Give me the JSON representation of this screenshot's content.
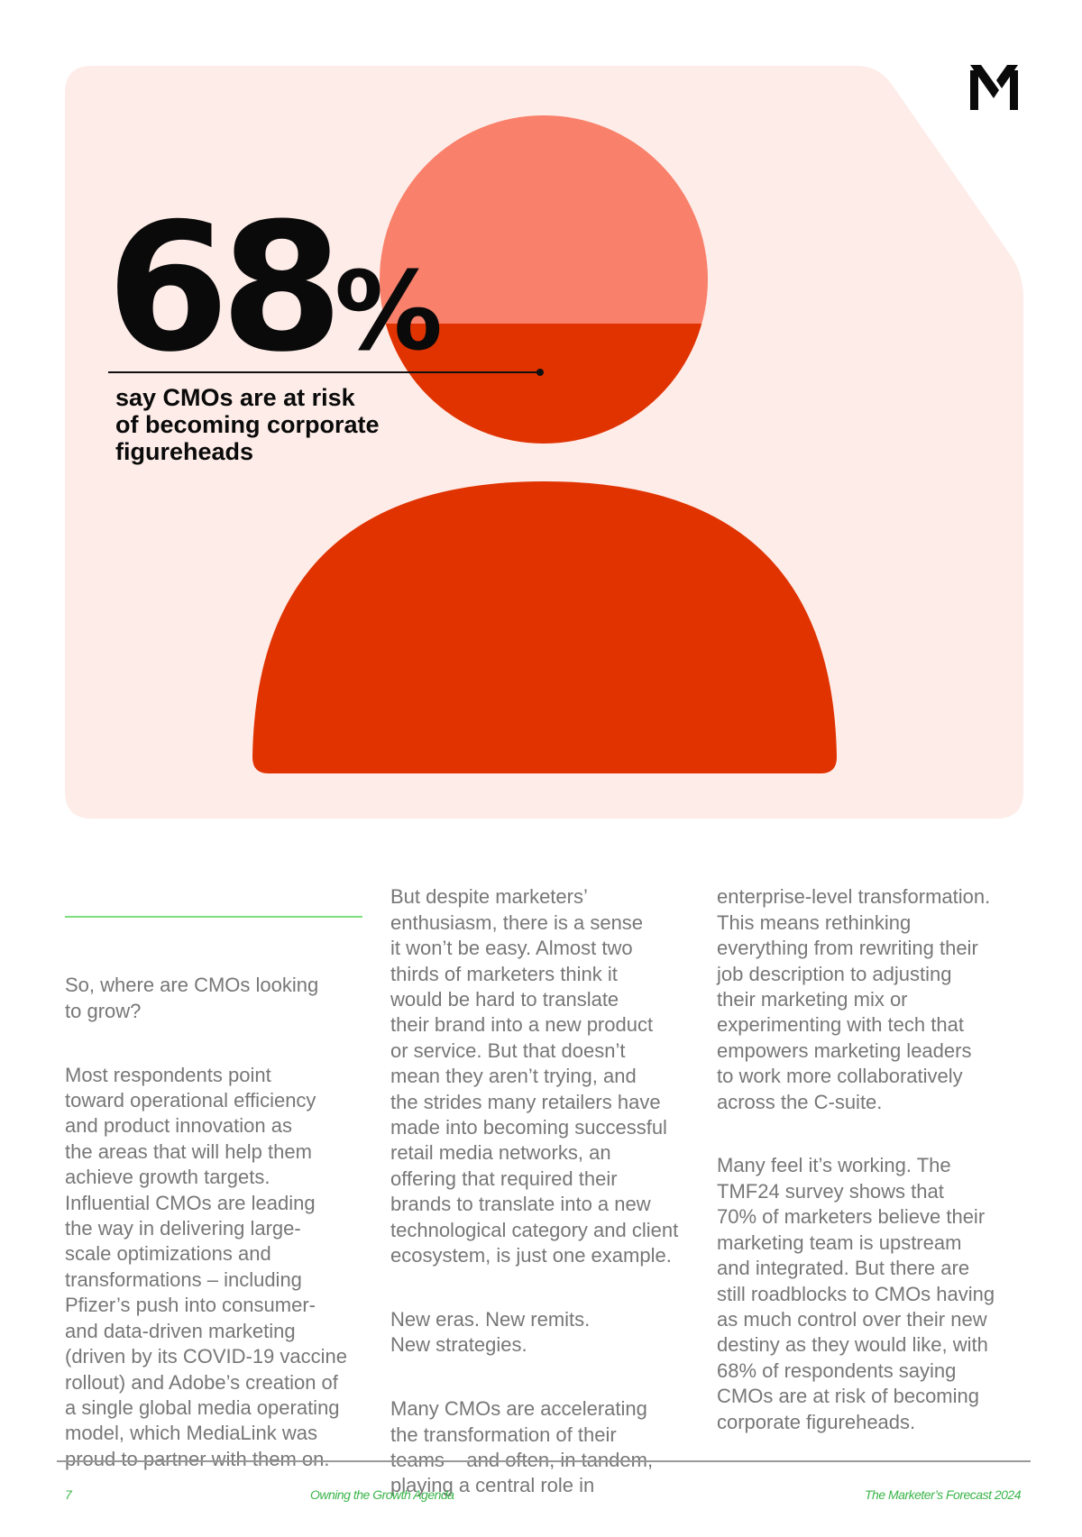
{
  "colors": {
    "panel": "#fdece8",
    "head_light": "#f9806a",
    "accent_red": "#e03300",
    "rule_green": "#7ee07a",
    "footer_green": "#3bb54a",
    "body_text": "#777777"
  },
  "logo": {
    "name": "medialink-m-logo",
    "letter": "M"
  },
  "stat": {
    "value": "68",
    "unit": "%",
    "caption": "say CMOs are at risk\nof becoming corporate\nfigureheads"
  },
  "columns": [
    {
      "paragraphs": [
        "So, where are CMOs looking\nto grow?",
        "Most respondents point\ntoward operational efficiency\nand product innovation as\nthe areas that will help them\nachieve growth targets.\nInfluential CMOs are leading\nthe way in delivering large-\nscale optimizations and\ntransformations – including\nPfizer’s push into consumer-\nand data-driven marketing\n(driven by its COVID-19 vaccine\nrollout) and Adobe’s creation of\na single global media operating\nmodel, which MediaLink was\nproud to partner with them on."
      ]
    },
    {
      "paragraphs": [
        "But despite marketers’\nenthusiasm, there is a sense\nit won’t be easy. Almost two\nthirds of marketers think it\nwould be hard to translate\ntheir brand into a new product\nor service. But that doesn’t\nmean they aren’t trying, and\nthe strides many retailers have\nmade into becoming successful\nretail media networks, an\noffering that required their\nbrands to translate into a new\ntechnological category and client\necosystem, is just one example.",
        "New eras. New remits.\nNew strategies.",
        "Many CMOs are accelerating\nthe transformation of their\nteams – and often, in tandem,\nplaying a central role in"
      ]
    },
    {
      "paragraphs": [
        "enterprise-level transformation.\nThis means rethinking\neverything from rewriting their\njob description to adjusting\ntheir marketing mix or\nexperimenting with tech that\nempowers marketing leaders\nto work more collaboratively\nacross the C-suite.",
        "Many feel it’s working. The\nTMF24 survey shows that\n70% of marketers believe their\nmarketing team is upstream\nand integrated. But there are\nstill roadblocks to CMOs having\nas much control over their new\ndestiny as they would like, with\n68% of respondents saying\nCMOs are at risk of becoming\ncorporate figureheads."
      ]
    }
  ],
  "footer": {
    "page_number": "7",
    "section": "Owning the Growth Agenda",
    "publication": "The Marketer’s Forecast 2024"
  }
}
